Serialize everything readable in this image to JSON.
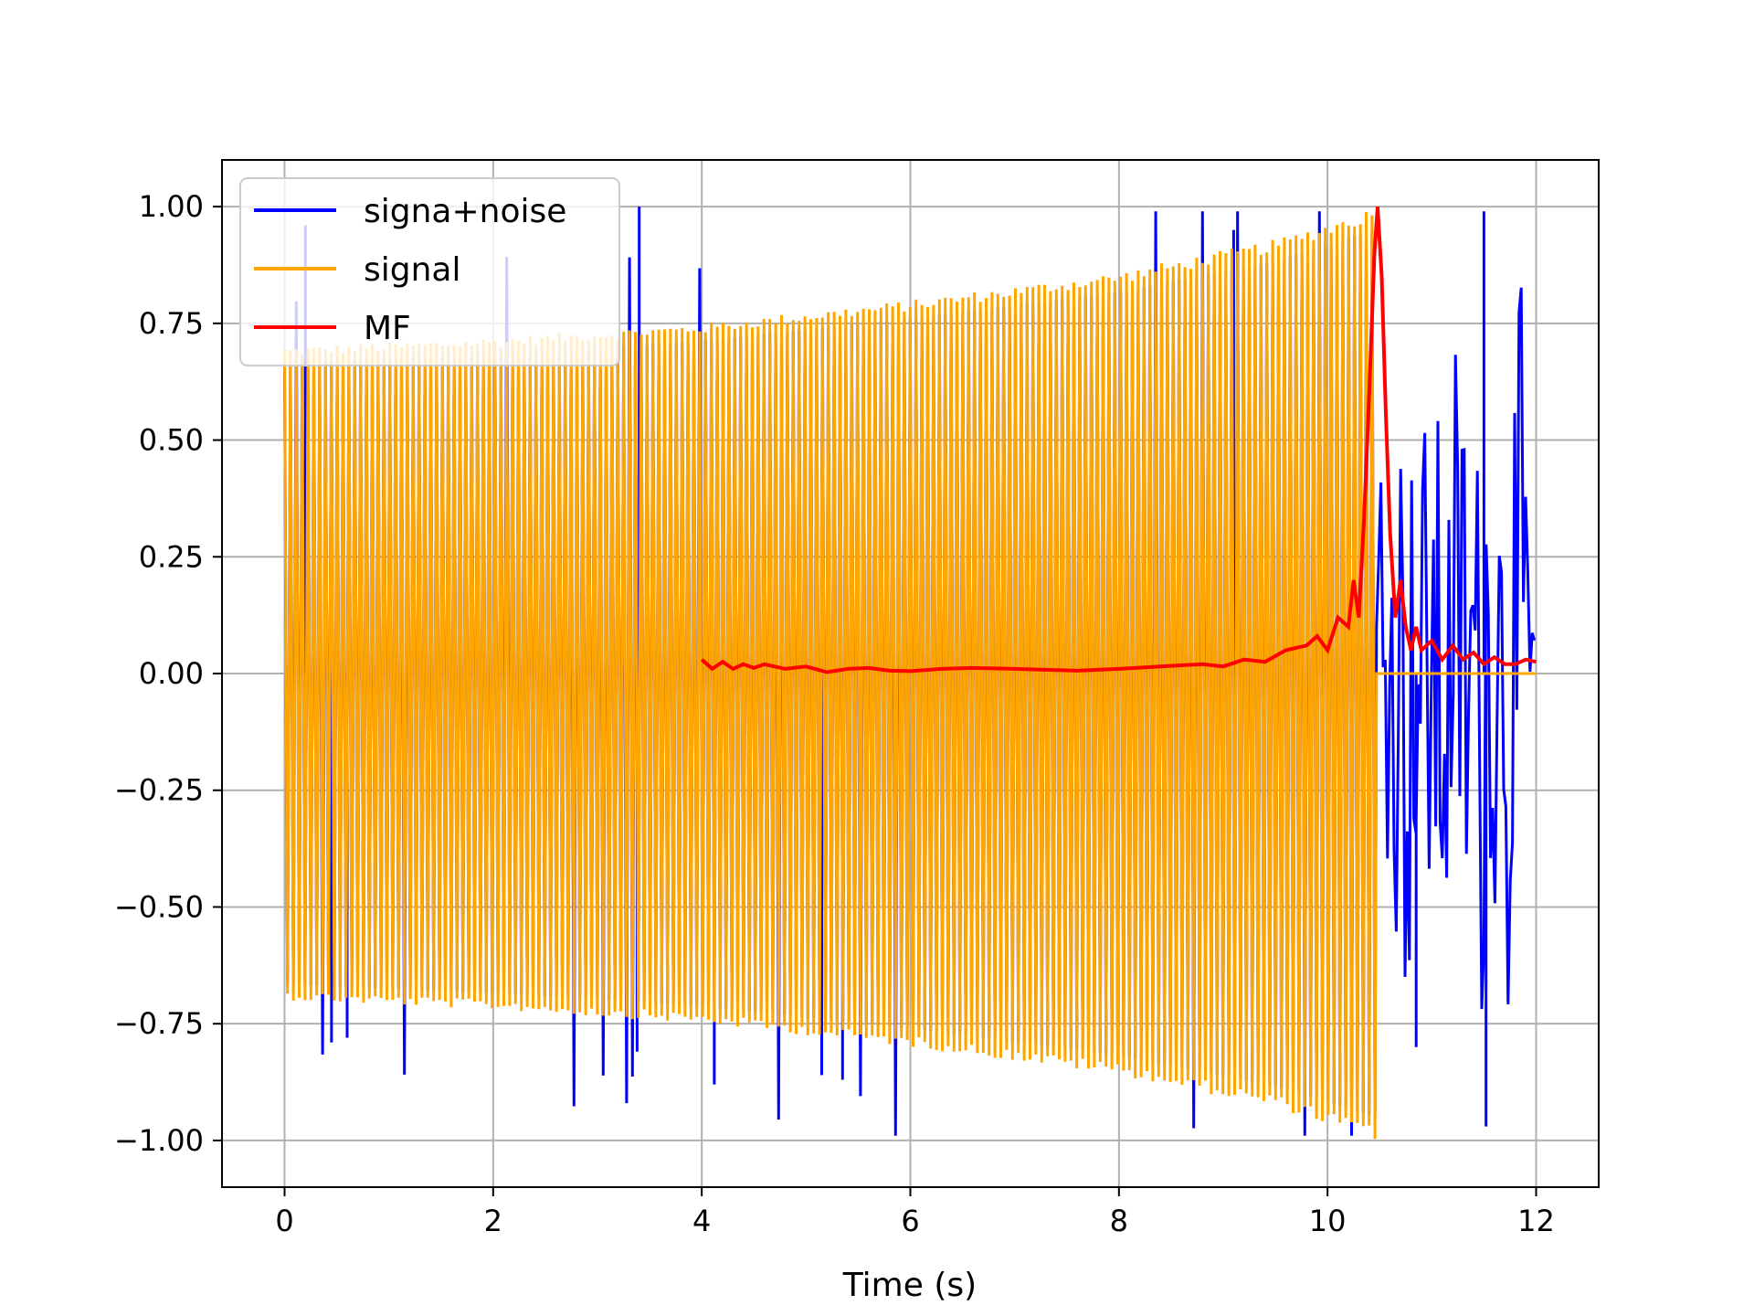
{
  "chart_data": {
    "type": "line",
    "title": "",
    "xlabel": "Time (s)",
    "ylabel": "",
    "xlim": [
      -0.6,
      12.6
    ],
    "ylim": [
      -1.1,
      1.1
    ],
    "xticks": [
      0,
      2,
      4,
      6,
      8,
      10,
      12
    ],
    "yticks": [
      -1.0,
      -0.75,
      -0.5,
      -0.25,
      0.0,
      0.25,
      0.5,
      0.75,
      1.0
    ],
    "xtick_labels": [
      "0",
      "2",
      "4",
      "6",
      "8",
      "10",
      "12"
    ],
    "ytick_labels": [
      "−1.00",
      "−0.75",
      "−0.50",
      "−0.25",
      "0.00",
      "0.25",
      "0.50",
      "0.75",
      "1.00"
    ],
    "grid": true,
    "legend_position": "upper-left",
    "colors": {
      "signal_noise": "#0000ff",
      "signal": "#ffa500",
      "mf": "#ff0000"
    },
    "series": [
      {
        "name": "signa+noise",
        "color": "#0000ff",
        "description_points": {
          "chirp_start": 0.0,
          "chirp_end": 10.5,
          "end": 12.0,
          "noise_amplitude": 0.97,
          "notable_spikes": [
            {
              "x": 0.2,
              "y": 0.96
            },
            {
              "x": 0.45,
              "y": -0.79
            },
            {
              "x": 0.6,
              "y": -0.78
            },
            {
              "x": 3.4,
              "y": 1.0
            },
            {
              "x": 3.38,
              "y": -0.81
            },
            {
              "x": 4.12,
              "y": -0.88
            },
            {
              "x": 5.15,
              "y": -0.86
            },
            {
              "x": 5.35,
              "y": -0.87
            },
            {
              "x": 9.1,
              "y": 0.95
            },
            {
              "x": 11.5,
              "y": 0.99
            },
            {
              "x": 11.52,
              "y": -0.97
            },
            {
              "x": 10.85,
              "y": -0.8
            }
          ]
        }
      },
      {
        "name": "signal",
        "color": "#ffa500",
        "envelope": [
          [
            0.0,
            0.7
          ],
          [
            2.0,
            0.72
          ],
          [
            4.0,
            0.75
          ],
          [
            6.0,
            0.8
          ],
          [
            8.0,
            0.86
          ],
          [
            9.5,
            0.93
          ],
          [
            10.47,
            1.0
          ]
        ],
        "chirp_end": 10.47,
        "zero_after": true,
        "end": 12.0
      },
      {
        "name": "MF",
        "color": "#ff0000",
        "x": [
          4.0,
          4.1,
          4.2,
          4.3,
          4.4,
          4.5,
          4.6,
          4.8,
          5.0,
          5.2,
          5.4,
          5.6,
          5.8,
          6.0,
          6.3,
          6.6,
          7.0,
          7.3,
          7.6,
          8.0,
          8.4,
          8.8,
          9.0,
          9.2,
          9.4,
          9.6,
          9.8,
          9.9,
          10.0,
          10.1,
          10.2,
          10.25,
          10.3,
          10.35,
          10.4,
          10.45,
          10.48,
          10.52,
          10.56,
          10.6,
          10.65,
          10.7,
          10.75,
          10.8,
          10.85,
          10.9,
          11.0,
          11.1,
          11.2,
          11.3,
          11.4,
          11.5,
          11.6,
          11.7,
          11.8,
          11.9,
          12.0
        ],
        "y": [
          0.03,
          0.01,
          0.025,
          0.01,
          0.02,
          0.012,
          0.02,
          0.01,
          0.015,
          0.003,
          0.01,
          0.012,
          0.006,
          0.005,
          0.01,
          0.012,
          0.01,
          0.008,
          0.006,
          0.01,
          0.015,
          0.02,
          0.015,
          0.03,
          0.025,
          0.05,
          0.06,
          0.08,
          0.05,
          0.12,
          0.1,
          0.2,
          0.12,
          0.33,
          0.6,
          0.9,
          1.0,
          0.85,
          0.55,
          0.3,
          0.12,
          0.2,
          0.1,
          0.05,
          0.1,
          0.05,
          0.07,
          0.03,
          0.06,
          0.03,
          0.045,
          0.02,
          0.035,
          0.02,
          0.02,
          0.03,
          0.025
        ]
      }
    ]
  },
  "legend": {
    "items": [
      "signa+noise",
      "signal",
      "MF"
    ]
  }
}
